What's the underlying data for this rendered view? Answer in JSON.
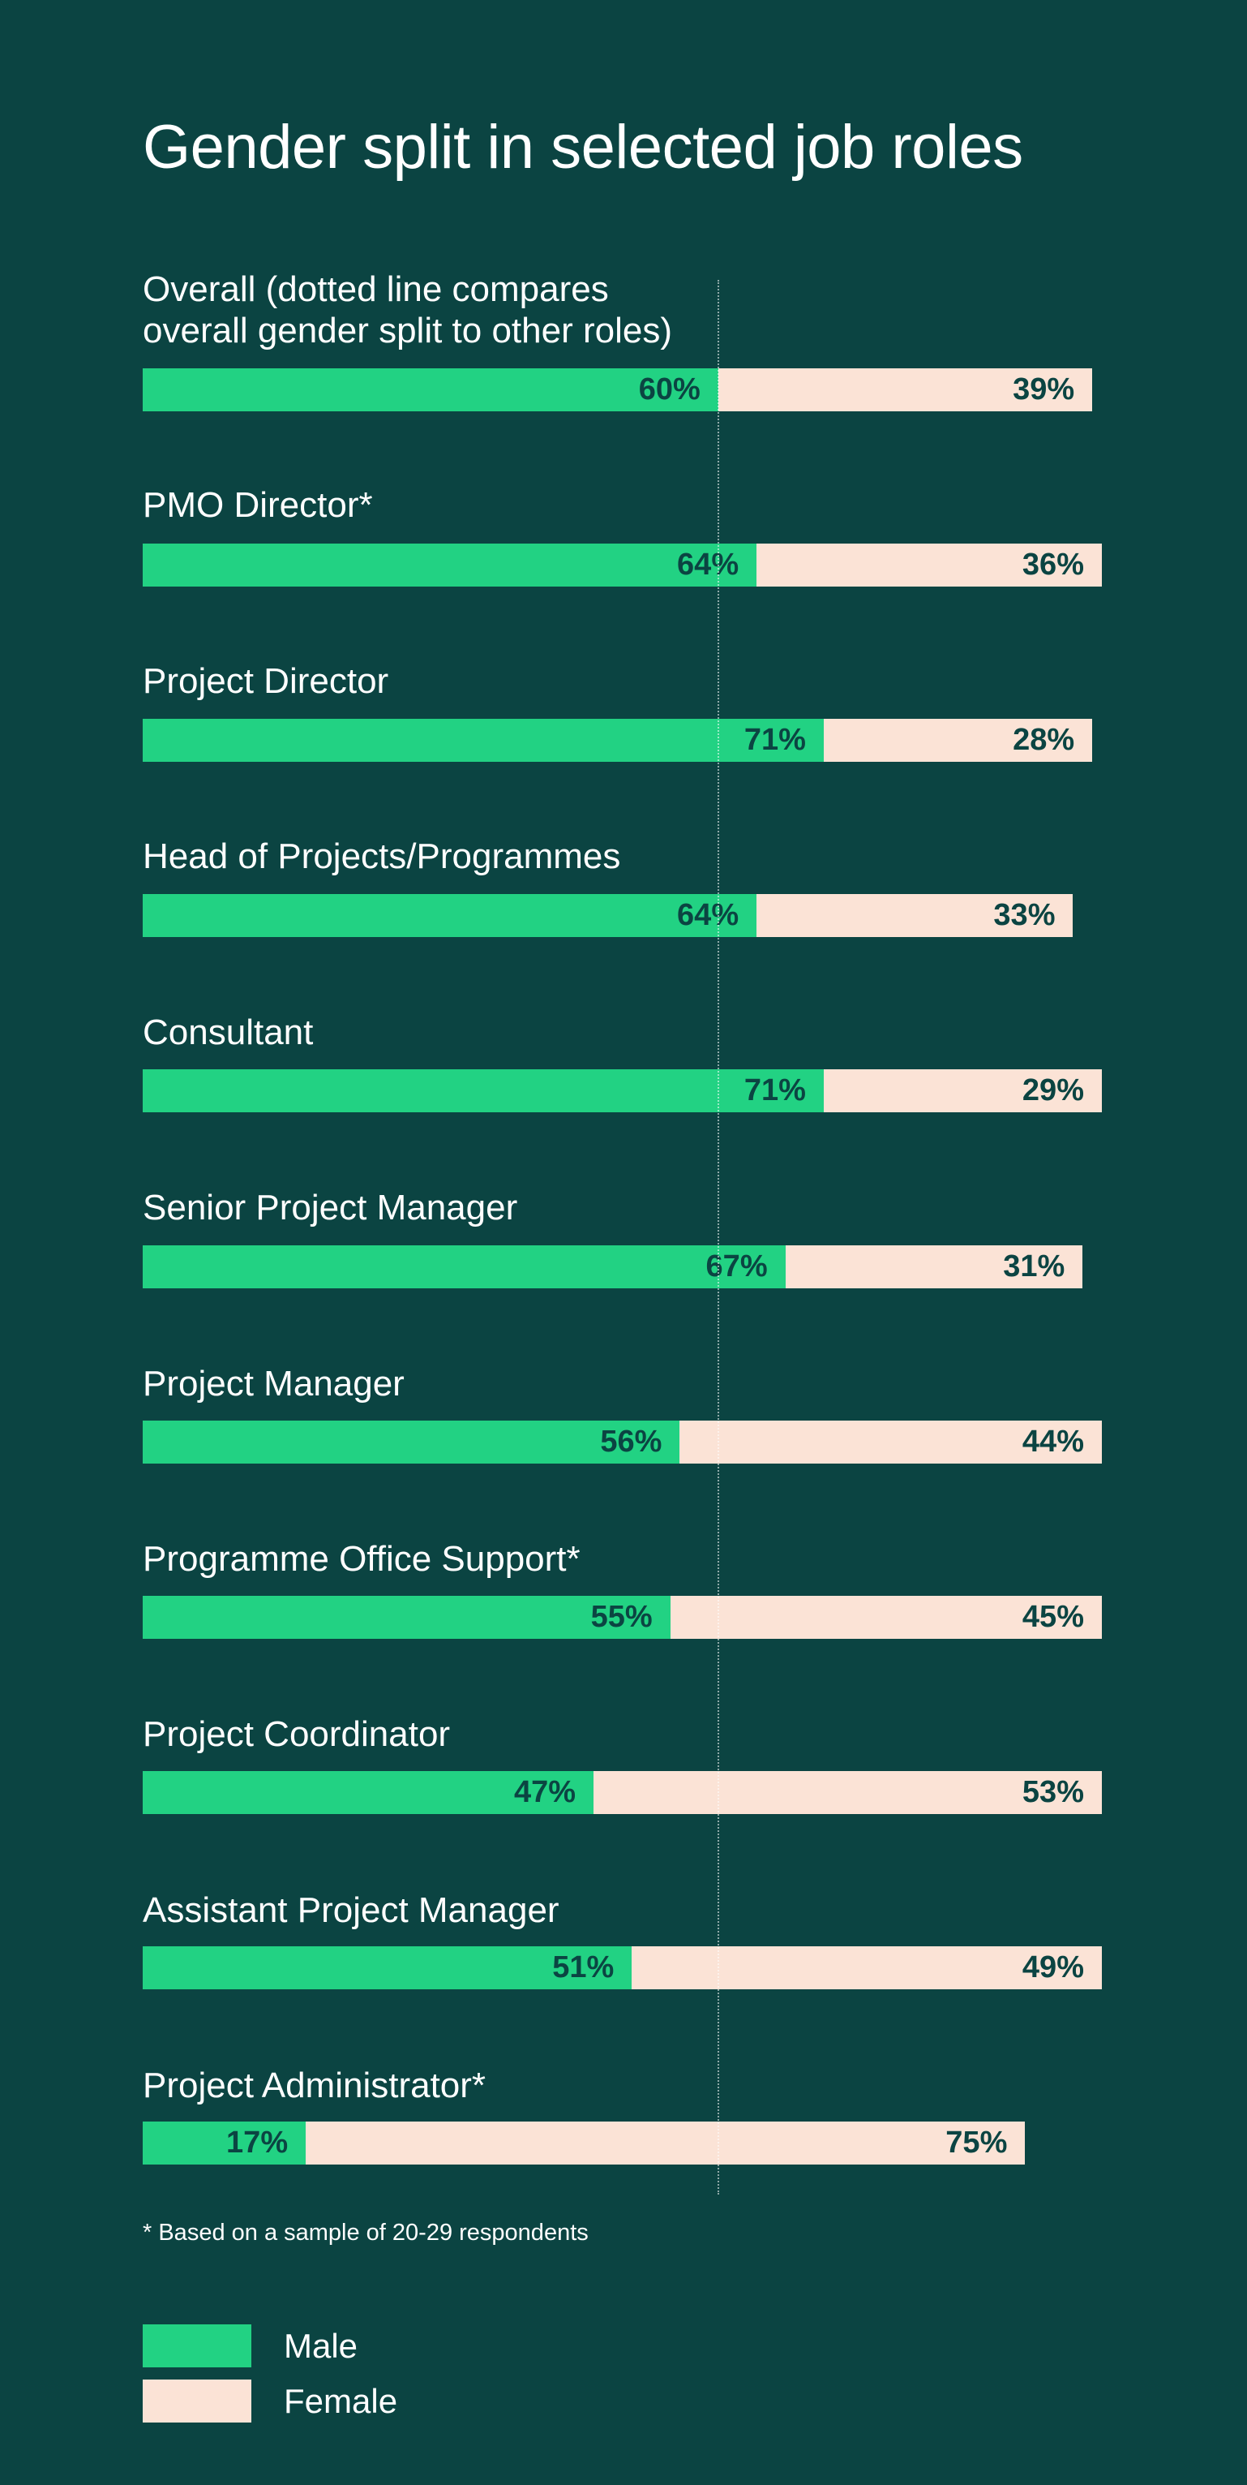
{
  "colors": {
    "background": "#0b4442",
    "male": "#22d283",
    "female": "#fbe3d6",
    "value_text": "#0b4442"
  },
  "title": "Gender split in selected job roles",
  "chart_data": {
    "type": "bar",
    "orientation": "horizontal",
    "stacked": true,
    "title": "Gender split in selected job roles",
    "xlim": [
      0,
      100
    ],
    "grid": false,
    "reference_line": {
      "description": "dotted line compares overall gender split to other roles",
      "value": 60
    },
    "categories": [
      "Overall (dotted line compares\noverall gender split to other roles)",
      "PMO Director*",
      "Project Director",
      "Head of Projects/Programmes",
      "Consultant",
      "Senior Project Manager",
      "Project Manager",
      "Programme Office Support*",
      "Project Coordinator",
      "Assistant Project Manager",
      "Project Administrator*"
    ],
    "series": [
      {
        "name": "Male",
        "values": [
          60,
          64,
          71,
          64,
          71,
          67,
          56,
          55,
          47,
          51,
          17
        ],
        "labels": [
          "60%",
          "64%",
          "71%",
          "64%",
          "71%",
          "67%",
          "56%",
          "55%",
          "47%",
          "51%",
          "17%"
        ]
      },
      {
        "name": "Female",
        "values": [
          39,
          36,
          28,
          33,
          29,
          31,
          44,
          45,
          53,
          49,
          75
        ],
        "labels": [
          "39%",
          "36%",
          "28%",
          "33%",
          "29%",
          "31%",
          "44%",
          "45%",
          "53%",
          "49%",
          "75%"
        ]
      }
    ],
    "legend": {
      "position": "bottom-left",
      "items": [
        "Male",
        "Female"
      ]
    },
    "footnote": "* Based on a sample of 20-29 respondents"
  }
}
